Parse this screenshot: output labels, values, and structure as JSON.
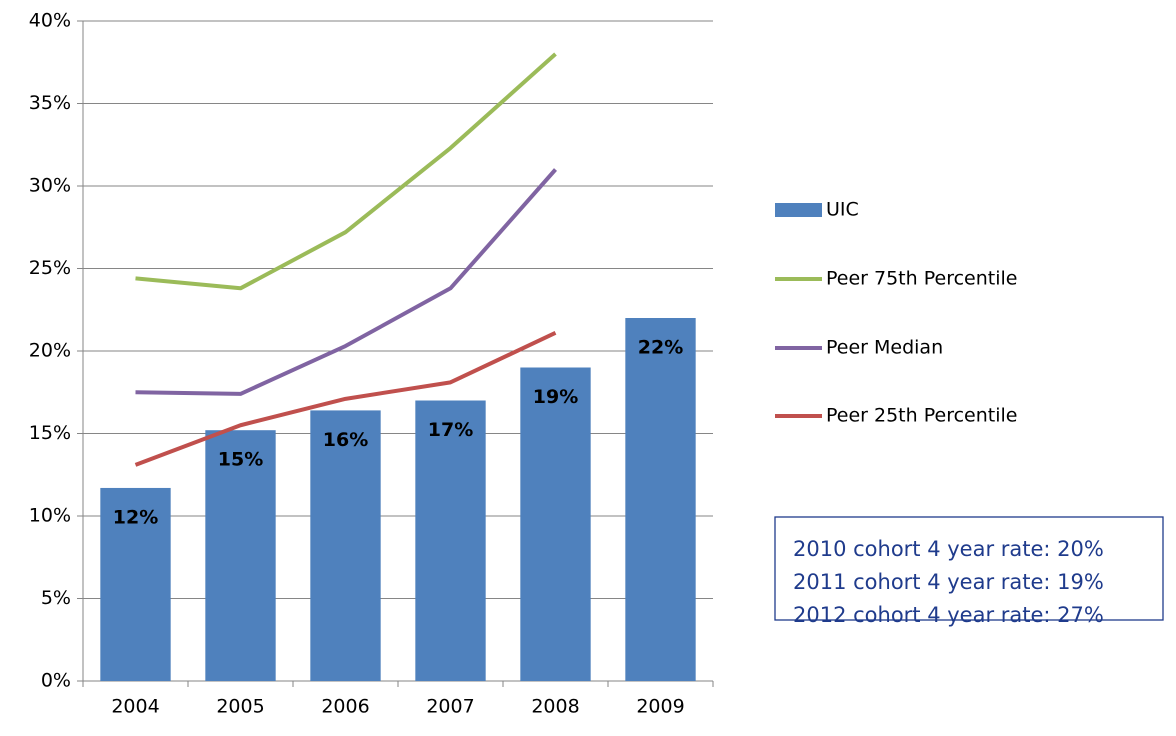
{
  "chart_data": {
    "type": "bar",
    "categories": [
      "2004",
      "2005",
      "2006",
      "2007",
      "2008",
      "2009"
    ],
    "series": [
      {
        "name": "UIC",
        "type": "bar",
        "color": "#4f81bd",
        "values": [
          11.7,
          15.2,
          16.4,
          17.0,
          19.0,
          22.0
        ],
        "value_labels": [
          "12%",
          "15%",
          "16%",
          "17%",
          "19%",
          "22%"
        ]
      },
      {
        "name": "Peer 75th Percentile",
        "type": "line",
        "color": "#9bbb59",
        "values": [
          24.4,
          23.8,
          27.2,
          32.3,
          38.0,
          null
        ]
      },
      {
        "name": "Peer Median",
        "type": "line",
        "color": "#8064a2",
        "values": [
          17.5,
          17.4,
          20.3,
          23.8,
          31.0,
          null
        ]
      },
      {
        "name": "Peer 25th Percentile",
        "type": "line",
        "color": "#c0504d",
        "values": [
          13.1,
          15.5,
          17.1,
          18.1,
          21.1,
          null
        ]
      }
    ],
    "ylim": [
      0,
      40
    ],
    "yticks": [
      {
        "value": 0,
        "label": "0%"
      },
      {
        "value": 5,
        "label": "5%"
      },
      {
        "value": 10,
        "label": "10%"
      },
      {
        "value": 15,
        "label": "15%"
      },
      {
        "value": 20,
        "label": "20%"
      },
      {
        "value": 25,
        "label": "25%"
      },
      {
        "value": 30,
        "label": "30%"
      },
      {
        "value": 35,
        "label": "35%"
      },
      {
        "value": 40,
        "label": "40%"
      }
    ],
    "grid": true,
    "legend": "right",
    "annotations": [
      "2010 cohort 4 year rate: 20%",
      "2011 cohort 4 year rate: 19%",
      "2012 cohort 4 year rate: 27%"
    ]
  }
}
